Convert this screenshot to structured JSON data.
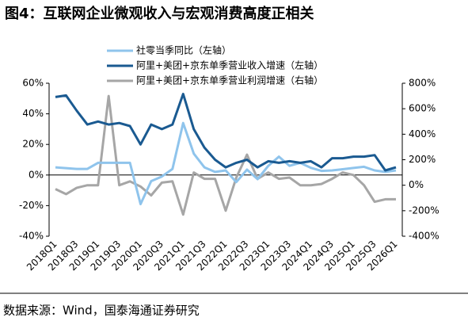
{
  "chart_data": {
    "type": "line",
    "title": "图4：互联网企业微观收入与宏观消费高度正相关",
    "source": "数据来源：Wind，国泰海通证券研究",
    "categories": [
      "2018Q1",
      null,
      "2018Q3",
      null,
      "2019Q1",
      null,
      "2019Q3",
      null,
      "2020Q1",
      null,
      "2020Q3",
      null,
      "2021Q1",
      null,
      "2021Q3",
      null,
      "2022Q1",
      null,
      "2022Q3",
      null,
      "2023Q1",
      null,
      "2023Q3",
      null,
      "2024Q1",
      null,
      "2024Q3",
      null,
      "2025Q1",
      null,
      "2025Q3",
      null,
      "2026Q1"
    ],
    "series": [
      {
        "name": "社零当季同比（左轴）",
        "color": "#8fc4ec",
        "values": [
          5,
          4.5,
          4,
          4,
          8,
          8,
          8,
          8,
          -19,
          -4,
          -1,
          4,
          34,
          14,
          5,
          2,
          3,
          -4.6,
          3.5,
          -2.7,
          6,
          12,
          6,
          8,
          4.7,
          2.7,
          3,
          3.8,
          4.6,
          5.4,
          3,
          2,
          3
        ]
      },
      {
        "name": "阿里+美团+京东单季营业收入增速（左轴）",
        "color": "#1a5a91",
        "values": [
          51,
          52,
          42,
          33,
          35,
          33,
          34,
          32,
          20,
          33,
          30,
          33,
          53,
          30,
          18,
          10,
          5,
          8,
          10,
          5,
          9,
          8,
          9,
          8,
          9,
          5,
          11,
          11,
          12,
          12,
          13,
          3,
          5
        ]
      },
      {
        "name": "阿里+美团+京东单季营业利润增速（右轴）",
        "color": "#a6a6a6",
        "axis": "y2",
        "values": [
          -30,
          -70,
          -20,
          0,
          0,
          700,
          0,
          30,
          -10,
          -80,
          20,
          30,
          -230,
          100,
          50,
          50,
          -200,
          60,
          240,
          50,
          100,
          50,
          60,
          0,
          0,
          10,
          50,
          100,
          80,
          0,
          -130,
          -110,
          -110
        ]
      }
    ],
    "ylim": [
      -40,
      60
    ],
    "yticks": [
      {
        "value": -40,
        "label": "-40%"
      },
      {
        "value": -20,
        "label": "-20%"
      },
      {
        "value": 0,
        "label": "0%"
      },
      {
        "value": 20,
        "label": "20%"
      },
      {
        "value": 40,
        "label": "40%"
      },
      {
        "value": 60,
        "label": "60%"
      }
    ],
    "y2lim": [
      -400,
      800
    ],
    "y2ticks": [
      {
        "value": -400,
        "label": "-400%"
      },
      {
        "value": -200,
        "label": "-200%"
      },
      {
        "value": 0,
        "label": "0%"
      },
      {
        "value": 200,
        "label": "200%"
      },
      {
        "value": 400,
        "label": "400%"
      },
      {
        "value": 600,
        "label": "600%"
      },
      {
        "value": 800,
        "label": "800%"
      }
    ],
    "legend": "top"
  }
}
